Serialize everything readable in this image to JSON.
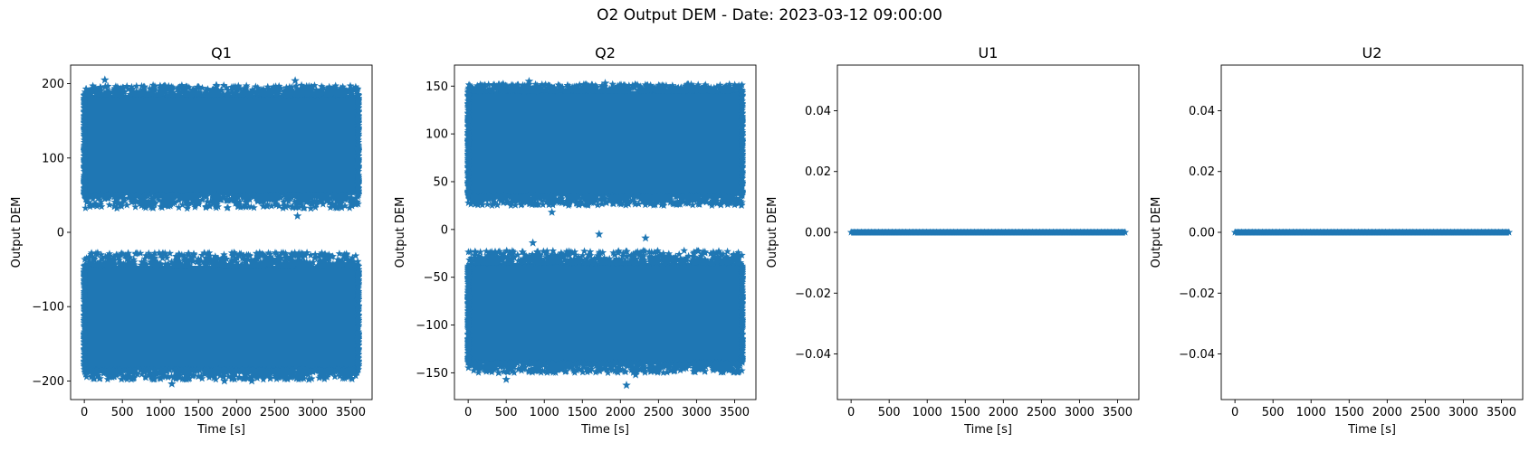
{
  "figure": {
    "title": "O2 Output DEM - Date: 2023-03-12 09:00:00"
  },
  "chart_data": [
    {
      "type": "scatter",
      "title": "Q1",
      "xlabel": "Time [s]",
      "ylabel": "Output DEM",
      "marker": "star",
      "color": "#1f77b4",
      "xlim": [
        -180,
        3780
      ],
      "ylim": [
        -225,
        225
      ],
      "xticks": [
        0,
        500,
        1000,
        1500,
        2000,
        2500,
        3000,
        3500
      ],
      "yticks": [
        -200,
        -100,
        0,
        100,
        200
      ],
      "ytick_labels": [
        "−200",
        "−100",
        "0",
        "100",
        "200"
      ],
      "x_range": [
        0,
        3600
      ],
      "bands": [
        {
          "y_min": 32,
          "y_max": 198,
          "core_min": 50,
          "core_max": 185
        },
        {
          "y_min": -198,
          "y_max": -27,
          "core_min": -185,
          "core_max": -45
        }
      ],
      "outliers": [
        [
          270,
          205
        ],
        [
          2770,
          204
        ],
        [
          2800,
          22
        ],
        [
          1150,
          -204
        ],
        [
          1840,
          -200
        ],
        [
          2950,
          -198
        ],
        [
          2200,
          -200
        ]
      ]
    },
    {
      "type": "scatter",
      "title": "Q2",
      "xlabel": "Time [s]",
      "ylabel": "Output DEM",
      "marker": "star",
      "color": "#1f77b4",
      "xlim": [
        -180,
        3780
      ],
      "ylim": [
        -178,
        172
      ],
      "xticks": [
        0,
        500,
        1000,
        1500,
        2000,
        2500,
        3000,
        3500
      ],
      "yticks": [
        -150,
        -100,
        -50,
        0,
        50,
        100,
        150
      ],
      "ytick_labels": [
        "−150",
        "−100",
        "−50",
        "0",
        "50",
        "100",
        "150"
      ],
      "x_range": [
        0,
        3600
      ],
      "bands": [
        {
          "y_min": 25,
          "y_max": 152,
          "core_min": 35,
          "core_max": 145
        },
        {
          "y_min": -150,
          "y_max": -22,
          "core_min": -140,
          "core_max": -35
        }
      ],
      "outliers": [
        [
          460,
          152
        ],
        [
          800,
          155
        ],
        [
          1800,
          153
        ],
        [
          1100,
          18
        ],
        [
          1720,
          -5
        ],
        [
          2330,
          -9
        ],
        [
          850,
          -14
        ],
        [
          2080,
          -163
        ],
        [
          500,
          -157
        ],
        [
          400,
          -150
        ],
        [
          2200,
          -152
        ]
      ]
    },
    {
      "type": "scatter",
      "title": "U1",
      "xlabel": "Time [s]",
      "ylabel": "Output DEM",
      "marker": "star",
      "color": "#1f77b4",
      "xlim": [
        -180,
        3780
      ],
      "ylim": [
        -0.055,
        0.055
      ],
      "xticks": [
        0,
        500,
        1000,
        1500,
        2000,
        2500,
        3000,
        3500
      ],
      "yticks": [
        -0.04,
        -0.02,
        0.0,
        0.02,
        0.04
      ],
      "ytick_labels": [
        "−0.04",
        "−0.02",
        "0.00",
        "0.02",
        "0.04"
      ],
      "x_range": [
        0,
        3600
      ],
      "constant_y": 0.0
    },
    {
      "type": "scatter",
      "title": "U2",
      "xlabel": "Time [s]",
      "ylabel": "Output DEM",
      "marker": "star",
      "color": "#1f77b4",
      "xlim": [
        -180,
        3780
      ],
      "ylim": [
        -0.055,
        0.055
      ],
      "xticks": [
        0,
        500,
        1000,
        1500,
        2000,
        2500,
        3000,
        3500
      ],
      "yticks": [
        -0.04,
        -0.02,
        0.0,
        0.02,
        0.04
      ],
      "ytick_labels": [
        "−0.04",
        "−0.02",
        "0.00",
        "0.02",
        "0.04"
      ],
      "x_range": [
        0,
        3600
      ],
      "constant_y": 0.0
    }
  ]
}
